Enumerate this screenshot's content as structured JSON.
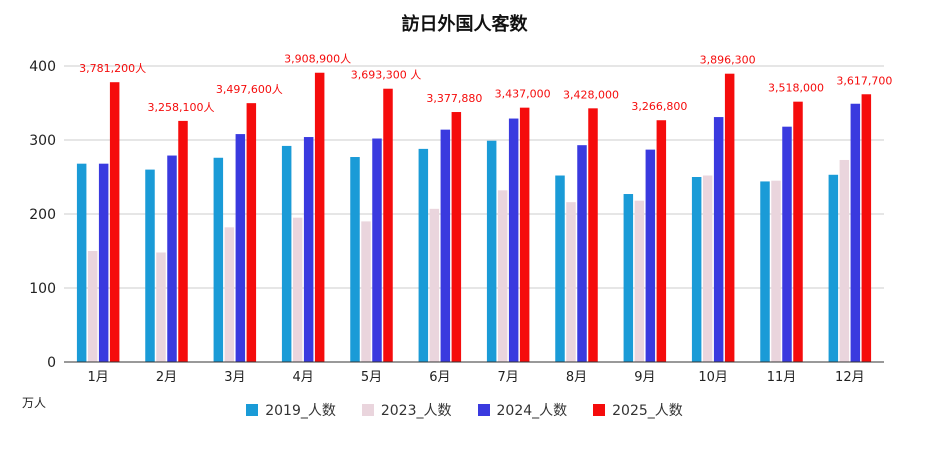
{
  "chart_data": {
    "type": "bar",
    "title": "訪日外国人客数",
    "unit_label": "万人",
    "categories": [
      "1月",
      "2月",
      "3月",
      "4月",
      "5月",
      "6月",
      "7月",
      "8月",
      "9月",
      "10月",
      "11月",
      "12月"
    ],
    "ylim": [
      0,
      400
    ],
    "yticks": [
      0,
      100,
      200,
      300,
      400
    ],
    "grid": true,
    "legend_position": "bottom",
    "series": [
      {
        "name": "2019_人数",
        "color": "#1a9bd7",
        "values": [
          268,
          260,
          276,
          292,
          277,
          288,
          299,
          252,
          227,
          250,
          244,
          253
        ]
      },
      {
        "name": "2023_人数",
        "color": "#ead5dd",
        "values": [
          150,
          148,
          182,
          195,
          190,
          207,
          232,
          216,
          218,
          252,
          245,
          273
        ]
      },
      {
        "name": "2024_人数",
        "color": "#3a3adf",
        "values": [
          268,
          279,
          308,
          304,
          302,
          314,
          329,
          293,
          287,
          331,
          318,
          349
        ]
      },
      {
        "name": "2025_人数",
        "color": "#f50c0c",
        "values": [
          378.1,
          325.8,
          349.8,
          390.9,
          369.3,
          337.8,
          343.7,
          342.8,
          326.7,
          389.6,
          351.8,
          361.8
        ]
      }
    ],
    "annotations": [
      "3,781,200人",
      "3,258,100人",
      "3,497,600人",
      "3,908,900人",
      "3,693,300 人",
      "3,377,880",
      "3,437,000",
      "3,428,000",
      "3,266,800",
      "3,896,300",
      "3,518,000",
      "3,617,700"
    ],
    "annotation_color": "#f50c0c"
  }
}
